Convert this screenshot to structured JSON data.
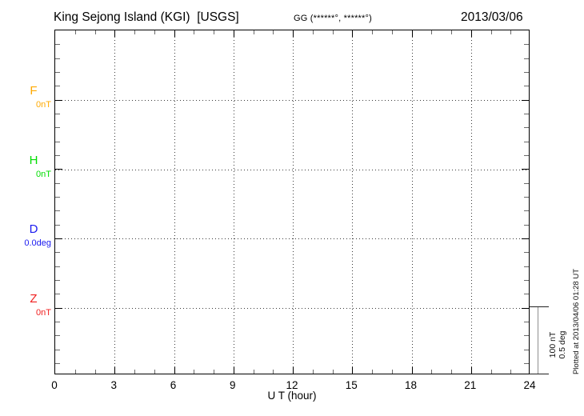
{
  "header": {
    "station_title": "King Sejong Island (KGI)  [USGS]",
    "coords_label": "GG (******°, ******°)",
    "date": "2013/03/06"
  },
  "channels": [
    {
      "id": "F",
      "label": "F",
      "value": "0nT",
      "color": "#FFAA00"
    },
    {
      "id": "H",
      "label": "H",
      "value": "0nT",
      "color": "#00DD00"
    },
    {
      "id": "D",
      "label": "D",
      "value": "0.0deg",
      "color": "#1A1AF0"
    },
    {
      "id": "Z",
      "label": "Z",
      "value": "0nT",
      "color": "#F02020"
    }
  ],
  "x_axis": {
    "label": "U T (hour)"
  },
  "scale_bar": {
    "labels": [
      "100 nT",
      "0.5 deg"
    ]
  },
  "footer_note": "Plotted at 2013/04/06 01:28 UT",
  "chart_data": {
    "type": "line",
    "title": "King Sejong Island (KGI) [USGS] magnetogram, 2013/03/06",
    "xlabel": "U T (hour)",
    "ylabel": "",
    "xlim": [
      0,
      24
    ],
    "x_major_ticks": [
      0,
      3,
      6,
      9,
      12,
      15,
      18,
      21,
      24
    ],
    "x_minor_step_hours": 1,
    "y_minor_divisions_per_major": 5,
    "grid": "dotted vertical lines every 3 hours; dotted horizontal baseline for each channel",
    "scale_per_major_division": [
      "100 nT",
      "0.5 deg"
    ],
    "legend_position": "left margin (channel letters F, H, D, Z with baseline values)",
    "series": [
      {
        "name": "F",
        "baseline_value_label": "0nT",
        "color": "#FFAA00",
        "x": [],
        "y": []
      },
      {
        "name": "H",
        "baseline_value_label": "0nT",
        "color": "#00DD00",
        "x": [],
        "y": []
      },
      {
        "name": "D",
        "baseline_value_label": "0.0deg",
        "color": "#1A1AF0",
        "x": [],
        "y": []
      },
      {
        "name": "Z",
        "baseline_value_label": "0nT",
        "color": "#F02020",
        "x": [],
        "y": []
      }
    ],
    "note": "No data traces are plotted; only dotted zero baselines are visible for all four channels."
  }
}
